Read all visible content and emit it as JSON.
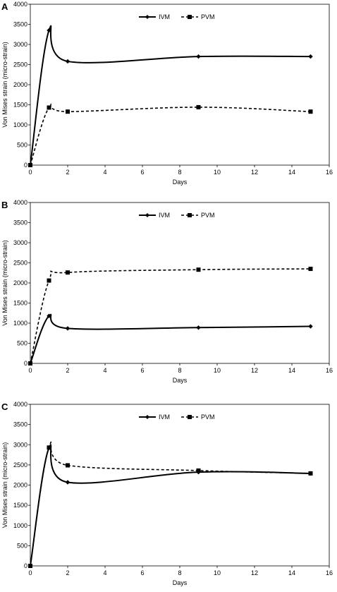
{
  "chart_data": [
    {
      "type": "line",
      "panel_label": "A",
      "title": "",
      "xlabel": "Days",
      "ylabel": "Von Mises strain (micro-strain)",
      "xlim": [
        0,
        16
      ],
      "ylim": [
        0,
        4000
      ],
      "xticks": [
        0,
        2,
        4,
        6,
        8,
        10,
        12,
        14,
        16
      ],
      "yticks": [
        0,
        500,
        1000,
        1500,
        2000,
        2500,
        3000,
        3500,
        4000
      ],
      "legend_position": "top-center",
      "series": [
        {
          "name": "IVM",
          "style": "solid",
          "marker": "diamond",
          "color": "#000000",
          "x": [
            0,
            1,
            2,
            9,
            15
          ],
          "y": [
            0,
            3350,
            2580,
            2700,
            2700
          ]
        },
        {
          "name": "PVM",
          "style": "dashed",
          "marker": "square",
          "color": "#000000",
          "x": [
            0,
            1,
            2,
            9,
            15
          ],
          "y": [
            0,
            1430,
            1330,
            1440,
            1330
          ]
        }
      ]
    },
    {
      "type": "line",
      "panel_label": "B",
      "title": "",
      "xlabel": "Days",
      "ylabel": "Von Mises strain (micro-strain)",
      "xlim": [
        0,
        16
      ],
      "ylim": [
        0,
        4000
      ],
      "xticks": [
        0,
        2,
        4,
        6,
        8,
        10,
        12,
        14,
        16
      ],
      "yticks": [
        0,
        500,
        1000,
        1500,
        2000,
        2500,
        3000,
        3500,
        4000
      ],
      "legend_position": "top-center",
      "series": [
        {
          "name": "IVM",
          "style": "solid",
          "marker": "diamond",
          "color": "#000000",
          "x": [
            0,
            1,
            2,
            9,
            15
          ],
          "y": [
            0,
            1180,
            870,
            890,
            920
          ]
        },
        {
          "name": "PVM",
          "style": "dashed",
          "marker": "square",
          "color": "#000000",
          "x": [
            0,
            1,
            2,
            9,
            15
          ],
          "y": [
            0,
            2060,
            2260,
            2330,
            2350
          ]
        }
      ]
    },
    {
      "type": "line",
      "panel_label": "C",
      "title": "",
      "xlabel": "Days",
      "ylabel": "Von Mises strain (micro-strain)",
      "xlim": [
        0,
        16
      ],
      "ylim": [
        0,
        4000
      ],
      "xticks": [
        0,
        2,
        4,
        6,
        8,
        10,
        12,
        14,
        16
      ],
      "yticks": [
        0,
        500,
        1000,
        1500,
        2000,
        2500,
        3000,
        3500,
        4000
      ],
      "legend_position": "top-center",
      "series": [
        {
          "name": "IVM",
          "style": "solid",
          "marker": "diamond",
          "color": "#000000",
          "x": [
            0,
            1,
            2,
            9,
            15
          ],
          "y": [
            0,
            2920,
            2070,
            2320,
            2290
          ]
        },
        {
          "name": "PVM",
          "style": "dashed",
          "marker": "square",
          "color": "#000000",
          "x": [
            0,
            1,
            2,
            9,
            15
          ],
          "y": [
            0,
            2930,
            2490,
            2360,
            2290
          ]
        }
      ]
    }
  ]
}
